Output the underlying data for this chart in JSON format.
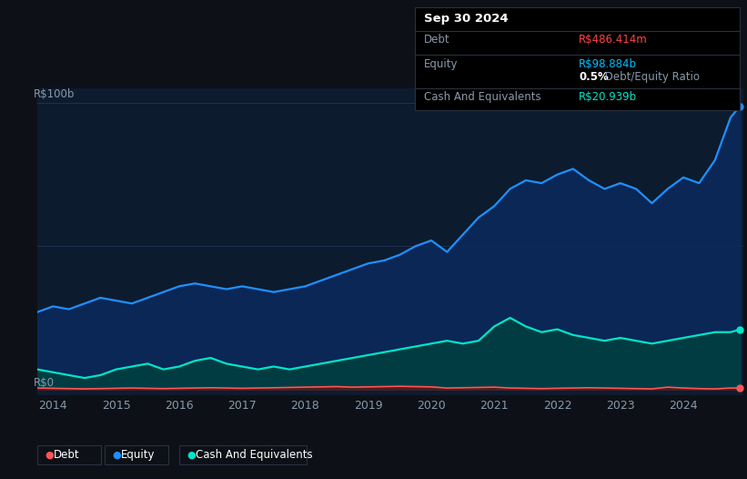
{
  "background_color": "#0d1117",
  "plot_bg_color": "#0d1b2e",
  "title_box": {
    "date": "Sep 30 2024",
    "debt_label": "Debt",
    "debt_value": "R$486.414m",
    "equity_label": "Equity",
    "equity_value": "R$98.884b",
    "ratio_bold": "0.5%",
    "ratio_text": " Debt/Equity Ratio",
    "cash_label": "Cash And Equivalents",
    "cash_value": "R$20.939b"
  },
  "ylabel": "R$100b",
  "y0_label": "R$0",
  "ylim": [
    -2,
    105
  ],
  "xlim": [
    2013.75,
    2024.95
  ],
  "xticks": [
    2014,
    2015,
    2016,
    2017,
    2018,
    2019,
    2020,
    2021,
    2022,
    2023,
    2024
  ],
  "colors": {
    "debt": "#ff5555",
    "debt_fill": "#5a1a1a",
    "equity": "#1e90ff",
    "equity_fill": "#0a2a5e",
    "cash": "#00e5c8",
    "cash_fill": "#004040",
    "grid": "#1e3050",
    "text": "#8899aa",
    "debt_val": "#ff4444",
    "equity_val": "#00bfff",
    "cash_val": "#00e5c8",
    "ratio_bold": "#ffffff"
  },
  "equity_x": [
    2013.75,
    2014.0,
    2014.25,
    2014.5,
    2014.75,
    2015.0,
    2015.25,
    2015.5,
    2015.75,
    2016.0,
    2016.25,
    2016.5,
    2016.75,
    2017.0,
    2017.25,
    2017.5,
    2017.75,
    2018.0,
    2018.25,
    2018.5,
    2018.75,
    2019.0,
    2019.25,
    2019.5,
    2019.75,
    2020.0,
    2020.25,
    2020.5,
    2020.75,
    2021.0,
    2021.25,
    2021.5,
    2021.75,
    2022.0,
    2022.25,
    2022.5,
    2022.75,
    2023.0,
    2023.25,
    2023.5,
    2023.75,
    2024.0,
    2024.25,
    2024.5,
    2024.75,
    2024.9
  ],
  "equity_y": [
    27,
    29,
    28,
    30,
    32,
    31,
    30,
    32,
    34,
    36,
    37,
    36,
    35,
    36,
    35,
    34,
    35,
    36,
    38,
    40,
    42,
    44,
    45,
    47,
    50,
    52,
    48,
    54,
    60,
    64,
    70,
    73,
    72,
    75,
    77,
    73,
    70,
    72,
    70,
    65,
    70,
    74,
    72,
    80,
    95,
    98.884
  ],
  "cash_x": [
    2013.75,
    2014.0,
    2014.25,
    2014.5,
    2014.75,
    2015.0,
    2015.25,
    2015.5,
    2015.75,
    2016.0,
    2016.25,
    2016.5,
    2016.75,
    2017.0,
    2017.25,
    2017.5,
    2017.75,
    2018.0,
    2018.25,
    2018.5,
    2018.75,
    2019.0,
    2019.25,
    2019.5,
    2019.75,
    2020.0,
    2020.25,
    2020.5,
    2020.75,
    2021.0,
    2021.25,
    2021.5,
    2021.75,
    2022.0,
    2022.25,
    2022.5,
    2022.75,
    2023.0,
    2023.25,
    2023.5,
    2023.75,
    2024.0,
    2024.25,
    2024.5,
    2024.75,
    2024.9
  ],
  "cash_y": [
    7,
    6,
    5,
    4,
    5,
    7,
    8,
    9,
    7,
    8,
    10,
    11,
    9,
    8,
    7,
    8,
    7,
    8,
    9,
    10,
    11,
    12,
    13,
    14,
    15,
    16,
    17,
    16,
    17,
    22,
    25,
    22,
    20,
    21,
    19,
    18,
    17,
    18,
    17,
    16,
    17,
    18,
    19,
    20,
    20,
    20.939
  ],
  "debt_x": [
    2013.75,
    2014.0,
    2014.25,
    2014.5,
    2014.75,
    2015.0,
    2015.25,
    2015.5,
    2015.75,
    2016.0,
    2016.25,
    2016.5,
    2016.75,
    2017.0,
    2017.25,
    2017.5,
    2017.75,
    2018.0,
    2018.25,
    2018.5,
    2018.75,
    2019.0,
    2019.25,
    2019.5,
    2019.75,
    2020.0,
    2020.25,
    2020.5,
    2020.75,
    2021.0,
    2021.25,
    2021.5,
    2021.75,
    2022.0,
    2022.25,
    2022.5,
    2022.75,
    2023.0,
    2023.25,
    2023.5,
    2023.75,
    2024.0,
    2024.25,
    2024.5,
    2024.75,
    2024.9
  ],
  "debt_y": [
    0.5,
    0.4,
    0.3,
    0.2,
    0.3,
    0.4,
    0.5,
    0.4,
    0.3,
    0.4,
    0.5,
    0.6,
    0.5,
    0.4,
    0.5,
    0.6,
    0.7,
    0.8,
    0.9,
    1.0,
    0.8,
    0.9,
    1.0,
    1.1,
    1.0,
    0.9,
    0.5,
    0.6,
    0.7,
    0.8,
    0.5,
    0.4,
    0.3,
    0.4,
    0.5,
    0.6,
    0.5,
    0.4,
    0.3,
    0.2,
    0.8,
    0.5,
    0.3,
    0.2,
    0.5,
    0.486
  ],
  "legend": [
    {
      "label": "Debt",
      "color": "#ff5555"
    },
    {
      "label": "Equity",
      "color": "#1e90ff"
    },
    {
      "label": "Cash And Equivalents",
      "color": "#00e5c8"
    }
  ]
}
